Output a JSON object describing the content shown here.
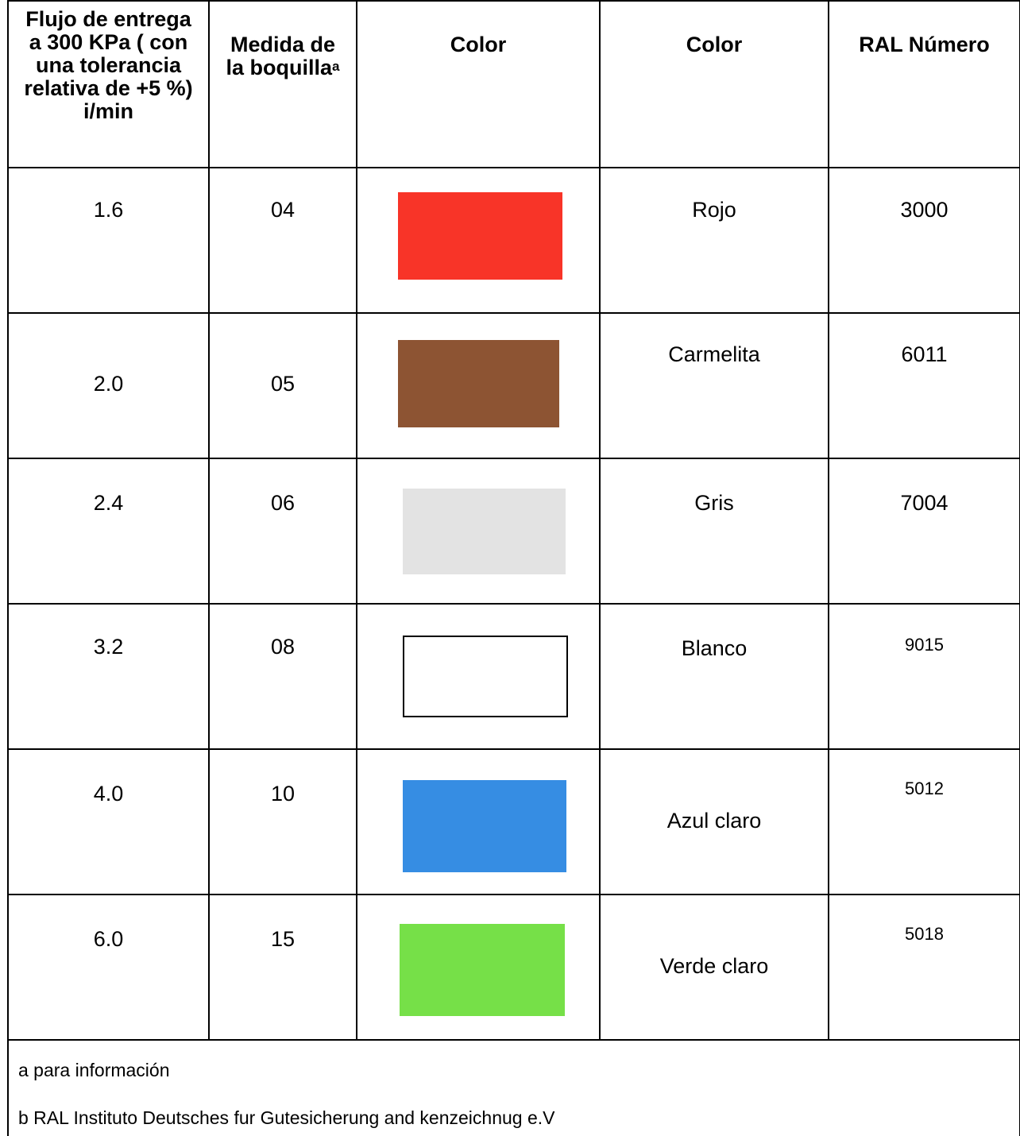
{
  "headers": {
    "flow": [
      "Flujo de entrega",
      "a 300 KPa ( con",
      "una tolerancia",
      "relativa de +5 %)",
      "i/min"
    ],
    "nozzle": [
      "Medida de",
      "la boquilla"
    ],
    "nozzle_sup": "a",
    "color_swatch": "Color",
    "color_name": "Color",
    "ral": "RAL Número"
  },
  "rows": [
    {
      "flow": "1.6",
      "nozzle": "04",
      "swatch": "#f83428",
      "name": "Rojo",
      "ral": "3000"
    },
    {
      "flow": "2.0",
      "nozzle": "05",
      "swatch": "#8d5433",
      "name": "Carmelita",
      "ral": "6011"
    },
    {
      "flow": "2.4",
      "nozzle": "06",
      "swatch": "#e3e3e3",
      "name": "Gris",
      "ral": "7004"
    },
    {
      "flow": "3.2",
      "nozzle": "08",
      "swatch": "#ffffff",
      "name": "Blanco",
      "ral": "9015"
    },
    {
      "flow": "4.0",
      "nozzle": "10",
      "swatch": "#368de3",
      "name": "Azul claro",
      "ral": "5012"
    },
    {
      "flow": "6.0",
      "nozzle": "15",
      "swatch": "#76e048",
      "name": "Verde claro",
      "ral": "5018"
    }
  ],
  "footnotes": {
    "a": "a  para información",
    "b": "b  RAL  Instituto Deutsches  fur Gutesicherung and kenzeichnug e.V"
  }
}
